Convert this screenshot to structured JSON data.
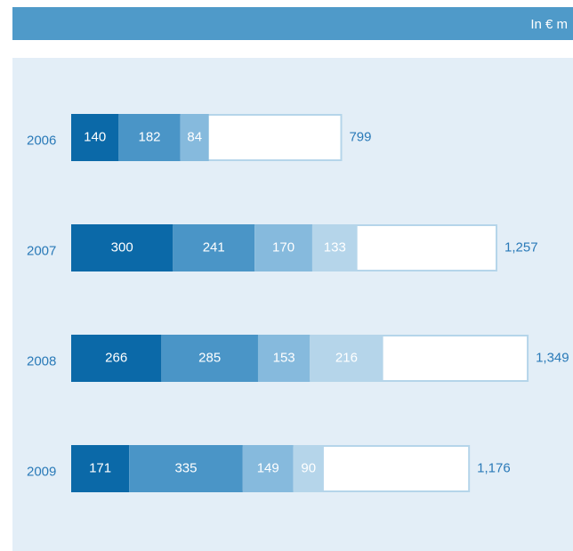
{
  "chart_data": {
    "type": "stacked-bar-horizontal",
    "unit_label": "In € m",
    "categories": [
      "2006",
      "2007",
      "2008",
      "2009"
    ],
    "series": [
      {
        "color": "#0b69a8",
        "values": [
          140,
          300,
          266,
          171
        ]
      },
      {
        "color": "#4a95c7",
        "values": [
          182,
          241,
          285,
          335
        ]
      },
      {
        "color": "#86badd",
        "values": [
          84,
          170,
          153,
          149
        ]
      },
      {
        "color": "#b5d5ea",
        "values": [
          null,
          133,
          216,
          90
        ]
      }
    ],
    "totals": {
      "values": [
        799,
        1257,
        1349,
        1176
      ],
      "value_labels": [
        "799",
        "1,257",
        "1,349",
        "1,176"
      ],
      "outline": "#b5d5ea"
    },
    "xlim": [
      0,
      1480
    ]
  }
}
